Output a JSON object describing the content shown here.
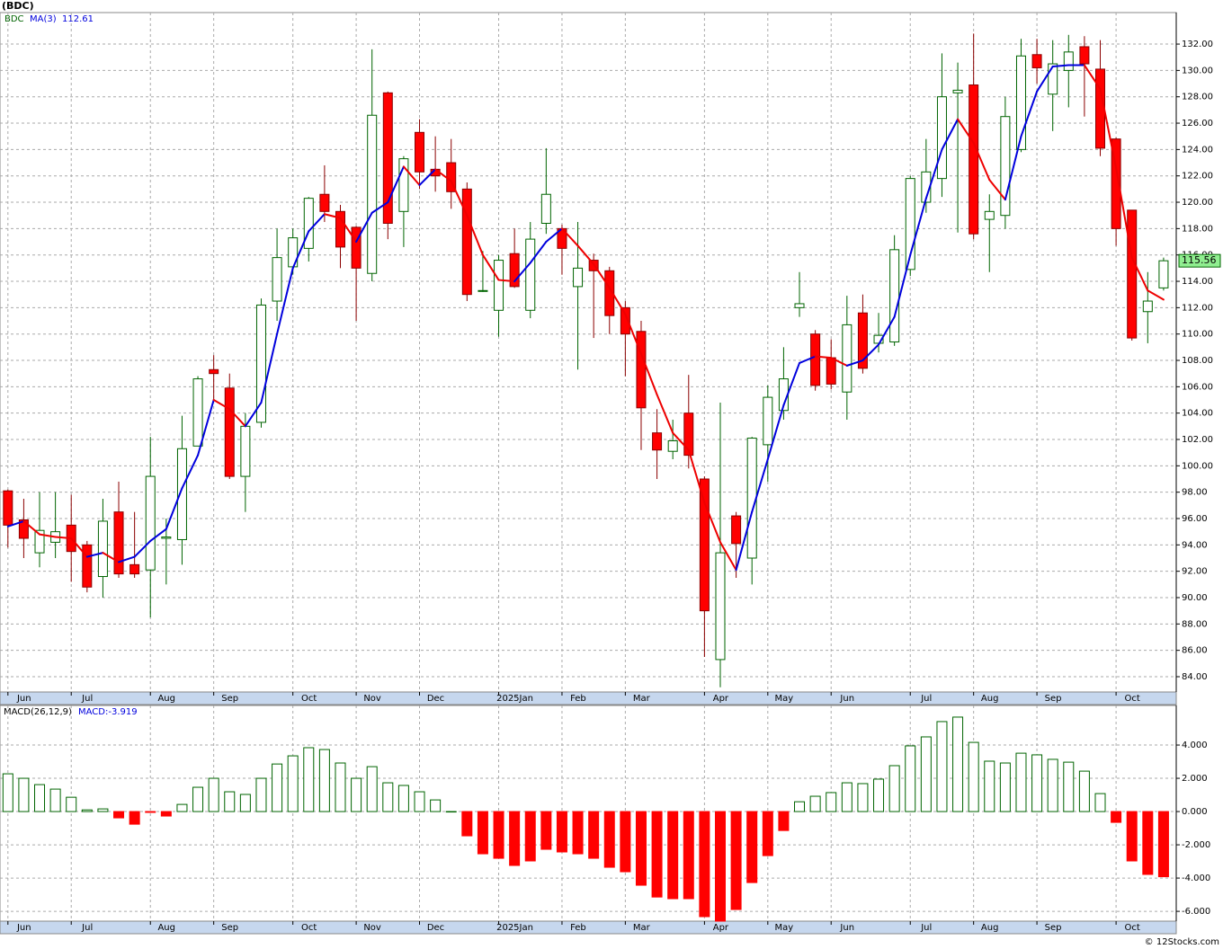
{
  "chart_data": [
    {
      "type": "candlestick",
      "title": "(BDC)",
      "legend": "BDC",
      "xlim": [
        -0.5,
        73.8
      ],
      "xticks": [
        {
          "value": 0,
          "label": "Jun"
        },
        {
          "value": 4,
          "label": "Jul"
        },
        {
          "value": 9,
          "label": "Aug"
        },
        {
          "value": 13,
          "label": "Sep"
        },
        {
          "value": 18,
          "label": "Oct"
        },
        {
          "value": 22,
          "label": "Nov"
        },
        {
          "value": 26,
          "label": "Dec"
        },
        {
          "value": 31,
          "label": "2025Jan"
        },
        {
          "value": 35,
          "label": "Feb"
        },
        {
          "value": 39,
          "label": "Mar"
        },
        {
          "value": 44,
          "label": "Apr"
        },
        {
          "value": 48,
          "label": "May"
        },
        {
          "value": 52,
          "label": "Jun"
        },
        {
          "value": 57,
          "label": "Jul"
        },
        {
          "value": 61,
          "label": "Aug"
        },
        {
          "value": 65,
          "label": "Sep"
        },
        {
          "value": 70,
          "label": "Oct"
        }
      ],
      "ylim": [
        82.84,
        134.39
      ],
      "yticks": [
        {
          "value": 84,
          "label": "84.00"
        },
        {
          "value": 86,
          "label": "86.00"
        },
        {
          "value": 88,
          "label": "88.00"
        },
        {
          "value": 90,
          "label": "90.00"
        },
        {
          "value": 92,
          "label": "92.00"
        },
        {
          "value": 94,
          "label": "94.00"
        },
        {
          "value": 96,
          "label": "96.00"
        },
        {
          "value": 98,
          "label": "98.00"
        },
        {
          "value": 100,
          "label": "100.00"
        },
        {
          "value": 102,
          "label": "102.00"
        },
        {
          "value": 104,
          "label": "104.00"
        },
        {
          "value": 106,
          "label": "106.00"
        },
        {
          "value": 108,
          "label": "108.00"
        },
        {
          "value": 110,
          "label": "110.00"
        },
        {
          "value": 112,
          "label": "112.00"
        },
        {
          "value": 114,
          "label": "114.00"
        },
        {
          "value": 116,
          "label": "116.00"
        },
        {
          "value": 118,
          "label": "118.00"
        },
        {
          "value": 120,
          "label": "120.00"
        },
        {
          "value": 122,
          "label": "122.00"
        },
        {
          "value": 124,
          "label": "124.00"
        },
        {
          "value": 126,
          "label": "126.00"
        },
        {
          "value": 128,
          "label": "128.00"
        },
        {
          "value": 130,
          "label": "130.00"
        },
        {
          "value": 132,
          "label": "132.00"
        }
      ],
      "grid": true,
      "up_color": "#006400",
      "down_color": "#ff0000",
      "last_price_color": "#90ee90",
      "open": [
        98.1,
        95.9,
        93.4,
        94.2,
        95.5,
        94.0,
        91.6,
        96.5,
        92.5,
        92.1,
        94.5,
        94.4,
        101.5,
        107.3,
        105.9,
        99.2,
        103.3,
        112.5,
        115.1,
        116.5,
        120.6,
        119.3,
        118.1,
        114.6,
        128.3,
        119.3,
        125.3,
        122.5,
        123.0,
        121.0,
        113.3,
        111.8,
        116.1,
        111.8,
        118.4,
        118.0,
        113.6,
        115.6,
        114.8,
        112.0,
        110.2,
        102.5,
        101.1,
        104.0,
        99.0,
        85.3,
        96.2,
        93.0,
        101.6,
        104.2,
        112.0,
        110.0,
        108.2,
        105.6,
        111.6,
        109.3,
        109.4,
        114.9,
        120.0,
        121.8,
        128.3,
        128.9,
        118.7,
        119.0,
        124.0,
        131.2,
        128.2,
        130.0,
        131.8,
        130.1,
        124.8,
        119.4,
        111.7,
        113.5
      ],
      "high": [
        98.2,
        97.5,
        98.0,
        98.0,
        97.8,
        94.3,
        97.5,
        98.8,
        96.5,
        102.2,
        96.0,
        103.8,
        106.8,
        108.4,
        107.0,
        104.0,
        112.7,
        118.0,
        118.0,
        120.4,
        122.8,
        119.8,
        118.2,
        131.6,
        128.4,
        123.5,
        126.3,
        125.0,
        124.8,
        121.5,
        116.3,
        116.0,
        118.0,
        118.5,
        124.1,
        118.3,
        118.5,
        116.1,
        115.1,
        112.5,
        111.0,
        104.3,
        103.5,
        106.9,
        99.2,
        104.8,
        96.5,
        102.2,
        106.1,
        109.0,
        114.7,
        110.3,
        109.6,
        112.9,
        113.0,
        111.6,
        117.5,
        122.0,
        124.8,
        131.3,
        130.6,
        132.8,
        120.6,
        128.0,
        132.4,
        132.4,
        132.3,
        132.7,
        132.6,
        132.3,
        124.9,
        119.4,
        114.7,
        115.8
      ],
      "low": [
        93.8,
        93.0,
        92.3,
        93.0,
        91.2,
        90.4,
        90.0,
        91.5,
        91.5,
        88.5,
        91.0,
        92.5,
        101.5,
        105.0,
        99.0,
        96.5,
        102.9,
        111.0,
        114.5,
        115.5,
        118.5,
        115.0,
        111.0,
        114.0,
        117.2,
        116.6,
        121.0,
        120.8,
        119.5,
        112.5,
        113.2,
        109.8,
        113.5,
        111.2,
        117.6,
        114.5,
        107.3,
        109.7,
        110.0,
        106.8,
        101.2,
        99.0,
        100.5,
        99.8,
        85.5,
        83.2,
        91.5,
        91.0,
        98.8,
        103.5,
        111.3,
        105.7,
        105.8,
        103.5,
        107.0,
        108.6,
        109.1,
        114.4,
        119.2,
        120.4,
        117.7,
        117.2,
        114.7,
        118.0,
        123.8,
        129.0,
        125.4,
        127.2,
        126.5,
        123.5,
        116.7,
        109.5,
        109.3,
        113.3
      ],
      "close": [
        95.5,
        94.5,
        95.1,
        95.0,
        93.5,
        90.8,
        95.8,
        91.8,
        91.8,
        99.2,
        94.6,
        101.3,
        106.6,
        107.0,
        99.2,
        103.0,
        112.2,
        115.8,
        117.3,
        120.3,
        119.3,
        116.6,
        115.0,
        126.6,
        118.4,
        123.3,
        122.3,
        122.0,
        120.8,
        113.0,
        113.3,
        115.6,
        113.6,
        117.2,
        120.6,
        116.5,
        115.0,
        114.8,
        111.4,
        110.0,
        104.4,
        101.2,
        101.9,
        100.8,
        89.0,
        93.4,
        94.1,
        102.1,
        105.2,
        106.6,
        112.3,
        106.1,
        106.2,
        110.7,
        107.4,
        109.9,
        116.4,
        121.8,
        122.3,
        128.0,
        128.5,
        117.6,
        119.3,
        126.5,
        131.1,
        130.2,
        130.5,
        131.4,
        130.5,
        124.1,
        118.0,
        109.7,
        112.5,
        115.56
      ],
      "ma": {
        "name": "MA(3)",
        "up_color": "#0000dd",
        "down_color": "#ee0000",
        "values": [
          95.4,
          95.8,
          94.8,
          94.6,
          94.5,
          93.1,
          93.4,
          92.7,
          93.1,
          94.3,
          95.2,
          98.3,
          100.8,
          105.0,
          104.3,
          103.0,
          104.8,
          110.0,
          115.0,
          117.8,
          119.1,
          118.8,
          117.0,
          119.2,
          120.0,
          122.7,
          121.3,
          122.5,
          121.6,
          119.0,
          116.0,
          114.1,
          114.0,
          115.4,
          117.0,
          118.0,
          116.7,
          115.3,
          113.5,
          111.5,
          108.5,
          105.4,
          102.5,
          101.2,
          97.2,
          94.2,
          92.1,
          96.5,
          100.5,
          104.6,
          107.8,
          108.3,
          108.2,
          107.6,
          108.0,
          109.2,
          111.3,
          116.0,
          120.3,
          124.0,
          126.3,
          124.5,
          121.7,
          120.2,
          125.0,
          128.4,
          130.3,
          130.4,
          130.4,
          128.6,
          122.6,
          115.8,
          113.3,
          112.61
        ]
      }
    },
    {
      "type": "bar",
      "legend": "MACD(26,12,9)",
      "value_label": "MACD:",
      "xlim": [
        -0.5,
        73.8
      ],
      "xticks": [
        {
          "value": 0,
          "label": "Jun"
        },
        {
          "value": 4,
          "label": "Jul"
        },
        {
          "value": 9,
          "label": "Aug"
        },
        {
          "value": 13,
          "label": "Sep"
        },
        {
          "value": 18,
          "label": "Oct"
        },
        {
          "value": 22,
          "label": "Nov"
        },
        {
          "value": 26,
          "label": "Dec"
        },
        {
          "value": 31,
          "label": "2025Jan"
        },
        {
          "value": 35,
          "label": "Feb"
        },
        {
          "value": 39,
          "label": "Mar"
        },
        {
          "value": 44,
          "label": "Apr"
        },
        {
          "value": 48,
          "label": "May"
        },
        {
          "value": 52,
          "label": "Jun"
        },
        {
          "value": 57,
          "label": "Jul"
        },
        {
          "value": 61,
          "label": "Aug"
        },
        {
          "value": 65,
          "label": "Sep"
        },
        {
          "value": 70,
          "label": "Oct"
        }
      ],
      "ylim": [
        -6.59,
        6.38
      ],
      "yticks": [
        {
          "value": -6,
          "label": "-6.000"
        },
        {
          "value": -4,
          "label": "-4.000"
        },
        {
          "value": -2,
          "label": "-2.000"
        },
        {
          "value": 0,
          "label": "0.000"
        },
        {
          "value": 2,
          "label": "2.000"
        },
        {
          "value": 4,
          "label": "4.000"
        }
      ],
      "grid": true,
      "up_color": "#006400",
      "down_color": "#ff0000",
      "values": [
        2.27,
        2.0,
        1.62,
        1.35,
        0.86,
        0.1,
        0.16,
        -0.38,
        -0.76,
        -0.05,
        -0.27,
        0.43,
        1.46,
        2.0,
        1.19,
        1.03,
        2.0,
        2.86,
        3.35,
        3.84,
        3.73,
        2.92,
        2.0,
        2.7,
        1.73,
        1.57,
        1.19,
        0.7,
        0.0,
        -1.46,
        -2.54,
        -2.81,
        -3.24,
        -2.97,
        -2.27,
        -2.43,
        -2.54,
        -2.81,
        -3.35,
        -3.62,
        -4.43,
        -5.14,
        -5.24,
        -5.24,
        -6.32,
        -6.6,
        -5.89,
        -4.27,
        -2.65,
        -1.14,
        0.59,
        0.92,
        1.14,
        1.73,
        1.68,
        1.95,
        2.76,
        3.95,
        4.49,
        5.41,
        5.68,
        4.16,
        3.03,
        2.92,
        3.51,
        3.41,
        3.14,
        2.97,
        2.43,
        1.08,
        -0.65,
        -2.97,
        -3.78,
        -3.919
      ]
    }
  ],
  "footer": "© 12Stocks.com"
}
